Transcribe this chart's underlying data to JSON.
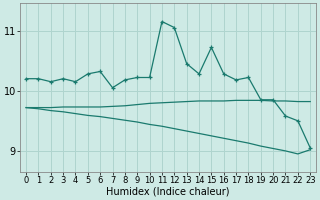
{
  "title": "",
  "xlabel": "Humidex (Indice chaleur)",
  "ylabel": "",
  "bg_color": "#ceeae5",
  "grid_color": "#afd4ce",
  "line_color": "#1a7a6e",
  "x_ticks": [
    0,
    1,
    2,
    3,
    4,
    5,
    6,
    7,
    8,
    9,
    10,
    11,
    12,
    13,
    14,
    15,
    16,
    17,
    18,
    19,
    20,
    21,
    22,
    23
  ],
  "y_ticks": [
    9,
    10,
    11
  ],
  "ylim": [
    8.65,
    11.45
  ],
  "xlim": [
    -0.5,
    23.5
  ],
  "series1_x": [
    0,
    1,
    2,
    3,
    4,
    5,
    6,
    7,
    8,
    9,
    10,
    11,
    12,
    13,
    14,
    15,
    16,
    17,
    18,
    19,
    20,
    21,
    22,
    23
  ],
  "series1_y": [
    10.2,
    10.2,
    10.15,
    10.2,
    10.15,
    10.28,
    10.32,
    10.05,
    10.18,
    10.22,
    10.22,
    11.15,
    11.05,
    10.45,
    10.28,
    10.72,
    10.28,
    10.18,
    10.22,
    9.85,
    9.85,
    9.58,
    9.5,
    9.05
  ],
  "series2_x": [
    0,
    1,
    2,
    3,
    4,
    5,
    6,
    7,
    8,
    9,
    10,
    11,
    12,
    13,
    14,
    15,
    16,
    17,
    18,
    19,
    20,
    21,
    22,
    23
  ],
  "series2_y": [
    9.72,
    9.72,
    9.72,
    9.73,
    9.73,
    9.73,
    9.73,
    9.74,
    9.75,
    9.77,
    9.79,
    9.8,
    9.81,
    9.82,
    9.83,
    9.83,
    9.83,
    9.84,
    9.84,
    9.84,
    9.83,
    9.83,
    9.82,
    9.82
  ],
  "series3_x": [
    0,
    1,
    2,
    3,
    4,
    5,
    6,
    7,
    8,
    9,
    10,
    11,
    12,
    13,
    14,
    15,
    16,
    17,
    18,
    19,
    20,
    21,
    22,
    23
  ],
  "series3_y": [
    9.72,
    9.7,
    9.67,
    9.65,
    9.62,
    9.59,
    9.57,
    9.54,
    9.51,
    9.48,
    9.44,
    9.41,
    9.37,
    9.33,
    9.29,
    9.25,
    9.21,
    9.17,
    9.13,
    9.08,
    9.04,
    9.0,
    8.95,
    9.02
  ],
  "tick_fontsize": 6,
  "xlabel_fontsize": 7
}
